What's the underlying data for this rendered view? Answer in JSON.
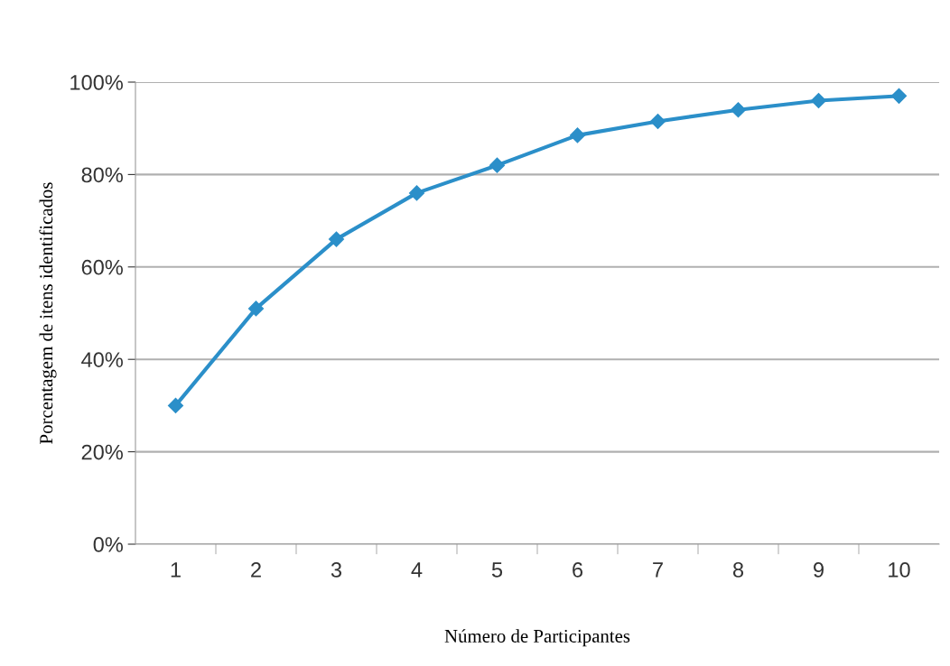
{
  "chart_data": {
    "type": "line",
    "xlabel": "Número de Participantes",
    "ylabel": "Porcentagem de itens identificados",
    "categories": [
      "1",
      "2",
      "3",
      "4",
      "5",
      "6",
      "7",
      "8",
      "9",
      "10"
    ],
    "series": [
      {
        "color": "#2b8fc9",
        "values": [
          30,
          51,
          66,
          76,
          82,
          88.5,
          91.5,
          94,
          96,
          97
        ]
      }
    ],
    "ylim": [
      0,
      100
    ],
    "yticks": [
      {
        "value": 0,
        "label": "0%"
      },
      {
        "value": 20,
        "label": "20%"
      },
      {
        "value": 40,
        "label": "40%"
      },
      {
        "value": 60,
        "label": "60%"
      },
      {
        "value": 80,
        "label": "80%"
      },
      {
        "value": 100,
        "label": "100%"
      }
    ],
    "grid": "y",
    "marker": "diamond",
    "line_style": "solid"
  }
}
